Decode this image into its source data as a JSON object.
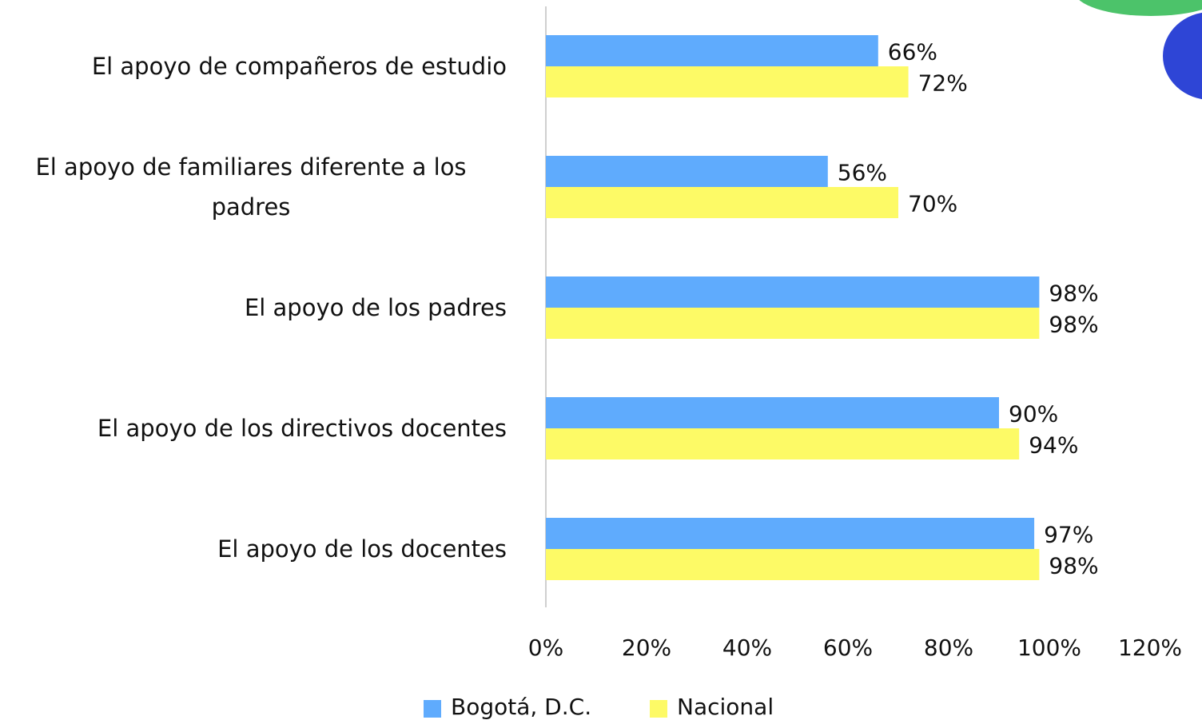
{
  "chart_data": {
    "type": "bar",
    "orientation": "horizontal",
    "categories": [
      "El apoyo de compañeros de estudio",
      "El apoyo de familiares diferente a los padres",
      "El apoyo de los padres",
      "El apoyo de los directivos docentes",
      "El apoyo de los docentes"
    ],
    "series": [
      {
        "name": "Bogotá, D.C.",
        "color": "#5fabfd",
        "values": [
          66,
          56,
          98,
          90,
          97
        ],
        "value_labels": [
          "66%",
          "56%",
          "98%",
          "90%",
          "97%"
        ]
      },
      {
        "name": "Nacional",
        "color": "#fdfa66",
        "values": [
          72,
          70,
          98,
          94,
          98
        ],
        "value_labels": [
          "72%",
          "70%",
          "98%",
          "94%",
          "98%"
        ]
      }
    ],
    "xlim": [
      0,
      120
    ],
    "xticks": [
      {
        "value": 0,
        "label": "0%"
      },
      {
        "value": 20,
        "label": "20%"
      },
      {
        "value": 40,
        "label": "40%"
      },
      {
        "value": 60,
        "label": "60%"
      },
      {
        "value": 80,
        "label": "80%"
      },
      {
        "value": 100,
        "label": "100%"
      },
      {
        "value": 120,
        "label": "120%"
      }
    ],
    "grid": false,
    "legend": "bottom"
  }
}
